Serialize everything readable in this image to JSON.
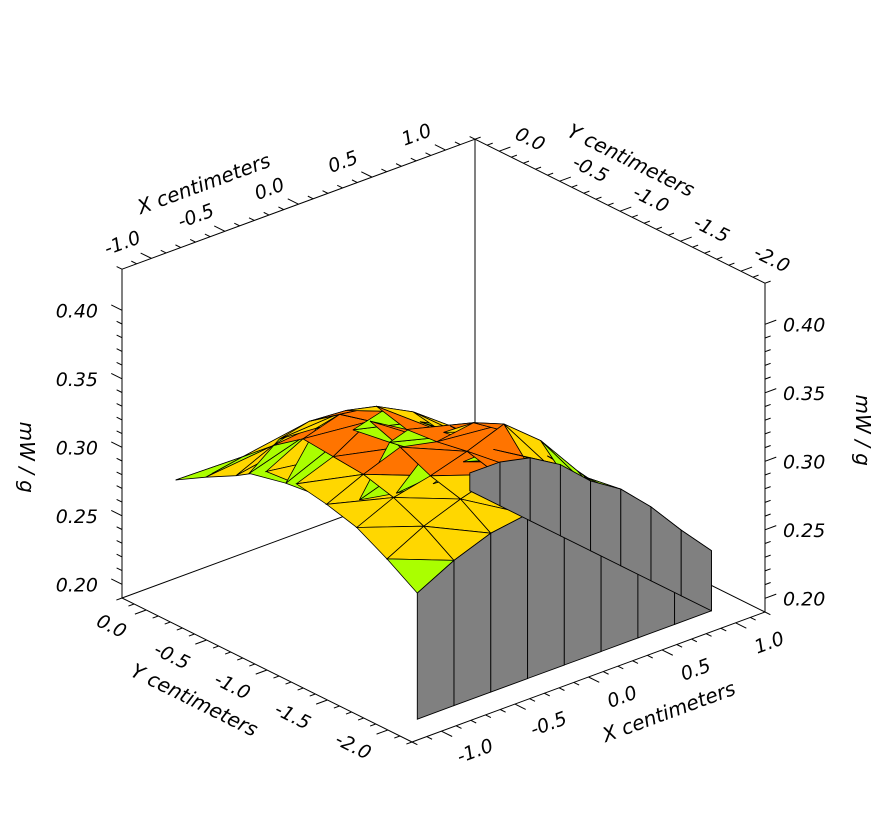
{
  "chart_data": {
    "type": "surface3d",
    "x_axis": {
      "label": "X centimeters",
      "range": [
        -1.2,
        1.2
      ],
      "ticks": [
        {
          "value": -1.0,
          "text": "-1.0"
        },
        {
          "value": -0.5,
          "text": "-0.5"
        },
        {
          "value": 0.0,
          "text": "0.0"
        },
        {
          "value": 0.5,
          "text": "0.5"
        },
        {
          "value": 1.0,
          "text": "1.0"
        }
      ]
    },
    "y_axis": {
      "label": "Y centimeters",
      "range": [
        -2.2,
        0.2
      ],
      "ticks": [
        {
          "value": 0.0,
          "text": "0.0"
        },
        {
          "value": -0.5,
          "text": "-0.5"
        },
        {
          "value": -1.0,
          "text": "-1.0"
        },
        {
          "value": -1.5,
          "text": "-1.5"
        },
        {
          "value": -2.0,
          "text": "-2.0"
        }
      ]
    },
    "z_axis": {
      "label": "mW / g",
      "range": [
        0.19,
        0.43
      ],
      "ticks": [
        {
          "value": 0.2,
          "text": "0.20"
        },
        {
          "value": 0.25,
          "text": "0.25"
        },
        {
          "value": 0.3,
          "text": "0.30"
        },
        {
          "value": 0.35,
          "text": "0.35"
        },
        {
          "value": 0.4,
          "text": "0.40"
        }
      ]
    },
    "grid": false,
    "skirt_color": "#808080",
    "color_scale": [
      {
        "min": 0.0,
        "max": 0.3,
        "color": "#aaff00"
      },
      {
        "min": 0.3,
        "max": 0.325,
        "color": "#ffd700"
      },
      {
        "min": 0.325,
        "max": 1.0,
        "color": "#ff7400"
      }
    ],
    "x": [
      -1.0,
      -0.75,
      -0.5,
      -0.25,
      0.0,
      0.25,
      0.5,
      0.75,
      1.0
    ],
    "y": [
      0.0,
      -0.25,
      -0.5,
      -0.75,
      -1.0,
      -1.25,
      -1.5,
      -1.75,
      -2.0
    ],
    "z": [
      [
        0.277,
        0.272,
        0.262,
        0.245,
        0.225,
        0.213,
        0.208,
        0.205,
        0.203
      ],
      [
        0.29,
        0.295,
        0.298,
        0.296,
        0.285,
        0.266,
        0.248,
        0.232,
        0.222
      ],
      [
        0.302,
        0.314,
        0.322,
        0.32,
        0.31,
        0.292,
        0.272,
        0.252,
        0.236
      ],
      [
        0.316,
        0.33,
        0.338,
        0.334,
        0.32,
        0.3,
        0.278,
        0.258,
        0.242
      ],
      [
        0.318,
        0.328,
        0.344,
        0.328,
        0.316,
        0.298,
        0.276,
        0.257,
        0.241
      ],
      [
        0.314,
        0.326,
        0.336,
        0.33,
        0.334,
        0.318,
        0.29,
        0.265,
        0.246
      ],
      [
        0.308,
        0.32,
        0.326,
        0.334,
        0.344,
        0.322,
        0.29,
        0.262,
        0.244
      ],
      [
        0.296,
        0.31,
        0.32,
        0.328,
        0.318,
        0.3,
        0.276,
        0.254,
        0.238
      ],
      [
        0.282,
        0.296,
        0.306,
        0.31,
        0.3,
        0.286,
        0.266,
        0.248,
        0.234
      ]
    ]
  }
}
